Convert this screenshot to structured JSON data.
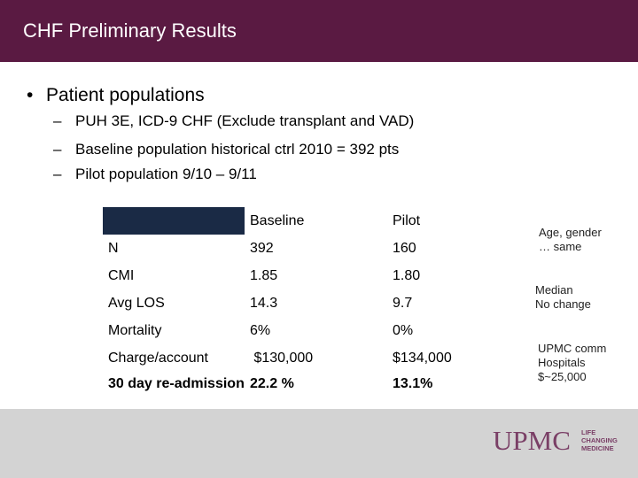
{
  "slide": {
    "title": "CHF Preliminary Results",
    "bullet": "•",
    "heading": "Patient populations",
    "sub_dash": "–",
    "sub_items": [
      "PUH 3E,  ICD-9 CHF (Exclude transplant and VAD)",
      "Baseline population historical ctrl 2010 = 392 pts",
      "Pilot population 9/10 – 9/11"
    ]
  },
  "table": {
    "headers": [
      "",
      "Baseline",
      "Pilot"
    ],
    "rows": [
      [
        "N",
        "392",
        "160"
      ],
      [
        "CMI",
        "1.85",
        "1.80"
      ],
      [
        "Avg LOS",
        "14.3",
        "9.7"
      ],
      [
        "Mortality",
        "6%",
        "0%"
      ],
      [
        "Charge/account",
        " $130,000",
        "$134,000"
      ],
      [
        "30 day re-admission",
        "22.2 %",
        "13.1%"
      ]
    ]
  },
  "notes": [
    "Age, gender\n… same",
    "Median\nNo change",
    "UPMC comm\nHospitals\n$~25,000"
  ],
  "logo": {
    "name": "UPMC",
    "tagline": "LIFE\nCHANGING\nMEDICINE"
  },
  "colors": {
    "title_bar": "#5a1a42",
    "table_header_corner": "#1a2a45",
    "footer": "#d3d3d3",
    "logo": "#7a3f66"
  }
}
